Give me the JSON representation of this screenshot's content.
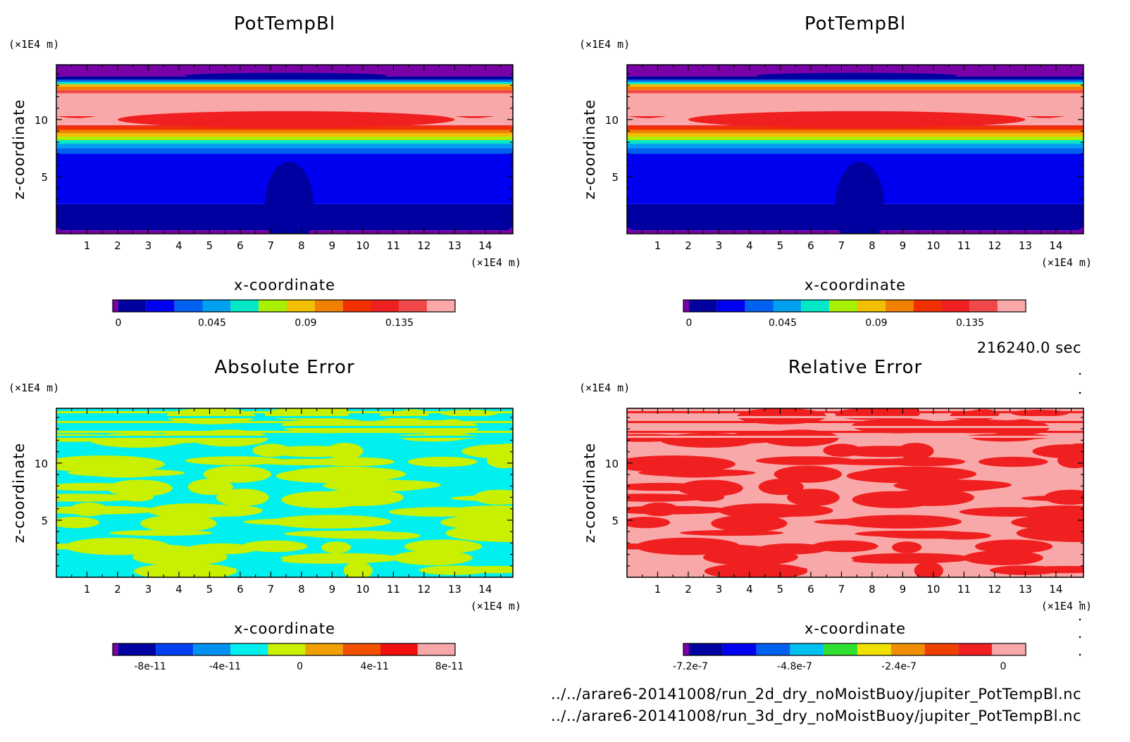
{
  "time_label": "216240.0 sec",
  "file_paths": [
    "../../arare6-20141008/run_2d_dry_noMoistBuoy/jupiter_PotTempBl.nc",
    "../../arare6-20141008/run_3d_dry_noMoistBuoy/jupiter_PotTempBl.nc"
  ],
  "chart_data": [
    {
      "type": "heatmap",
      "panel": "top-left",
      "title": "PotTempBl",
      "xlabel": "x-coordinate",
      "ylabel": "z-coordinate",
      "x_unit": "(×1E4 m)",
      "y_unit": "(×1E4 m)",
      "x_ticks": [
        1,
        2,
        3,
        4,
        5,
        6,
        7,
        8,
        9,
        10,
        11,
        12,
        13,
        14
      ],
      "y_ticks": [
        5,
        10
      ],
      "xlim": [
        0,
        14.9
      ],
      "ylim": [
        0,
        14.8
      ],
      "colorbar": {
        "colors": [
          "#7a00a8",
          "#0000a0",
          "#0000f0",
          "#0060f0",
          "#00a0f0",
          "#00e8c8",
          "#a8f000",
          "#f0c000",
          "#f08000",
          "#f03000",
          "#f02020",
          "#f04848",
          "#f8a8a8"
        ],
        "tick_labels": [
          "0",
          "0.045",
          "0.09",
          "0.135"
        ]
      },
      "bands_z_to_color": [
        [
          0,
          0.3,
          "#7a00a8"
        ],
        [
          0.3,
          2.6,
          "#0000a0"
        ],
        [
          2.6,
          7.0,
          "#0000f0"
        ],
        [
          7.0,
          7.5,
          "#0060f0"
        ],
        [
          7.5,
          7.9,
          "#00a0f0"
        ],
        [
          7.9,
          8.2,
          "#00e8c8"
        ],
        [
          8.2,
          8.5,
          "#a8f000"
        ],
        [
          8.5,
          8.8,
          "#f0c000"
        ],
        [
          8.8,
          9.1,
          "#f08000"
        ],
        [
          9.1,
          9.4,
          "#f03000"
        ],
        [
          9.4,
          10.3,
          "#f02020"
        ],
        [
          10.3,
          12.3,
          "#f8a8a8"
        ],
        [
          12.3,
          12.6,
          "#f04848"
        ],
        [
          12.6,
          12.9,
          "#f08000"
        ],
        [
          12.9,
          13.1,
          "#f0c000"
        ],
        [
          13.1,
          13.3,
          "#00e8c8"
        ],
        [
          13.3,
          13.5,
          "#0060f0"
        ],
        [
          13.5,
          13.8,
          "#0000a0"
        ],
        [
          13.8,
          14.8,
          "#7a00a8"
        ]
      ]
    },
    {
      "type": "heatmap",
      "panel": "top-right",
      "title": "PotTempBl",
      "xlabel": "x-coordinate",
      "ylabel": "z-coordinate",
      "x_unit": "(×1E4 m)",
      "y_unit": "(×1E4 m)",
      "x_ticks": [
        1,
        2,
        3,
        4,
        5,
        6,
        7,
        8,
        9,
        10,
        11,
        12,
        13,
        14
      ],
      "y_ticks": [
        5,
        10
      ],
      "xlim": [
        0,
        14.9
      ],
      "ylim": [
        0,
        14.8
      ],
      "colorbar": {
        "colors": [
          "#7a00a8",
          "#0000a0",
          "#0000f0",
          "#0060f0",
          "#00a0f0",
          "#00e8c8",
          "#a8f000",
          "#f0c000",
          "#f08000",
          "#f03000",
          "#f02020",
          "#f04848",
          "#f8a8a8"
        ],
        "tick_labels": [
          "0",
          "0.045",
          "0.09",
          "0.135"
        ]
      },
      "bands_z_to_color": [
        [
          0,
          0.3,
          "#7a00a8"
        ],
        [
          0.3,
          2.6,
          "#0000a0"
        ],
        [
          2.6,
          7.0,
          "#0000f0"
        ],
        [
          7.0,
          7.5,
          "#0060f0"
        ],
        [
          7.5,
          7.9,
          "#00a0f0"
        ],
        [
          7.9,
          8.2,
          "#00e8c8"
        ],
        [
          8.2,
          8.5,
          "#a8f000"
        ],
        [
          8.5,
          8.8,
          "#f0c000"
        ],
        [
          8.8,
          9.1,
          "#f08000"
        ],
        [
          9.1,
          9.4,
          "#f03000"
        ],
        [
          9.4,
          10.3,
          "#f02020"
        ],
        [
          10.3,
          12.3,
          "#f8a8a8"
        ],
        [
          12.3,
          12.6,
          "#f04848"
        ],
        [
          12.6,
          12.9,
          "#f08000"
        ],
        [
          12.9,
          13.1,
          "#f0c000"
        ],
        [
          13.1,
          13.3,
          "#00e8c8"
        ],
        [
          13.3,
          13.5,
          "#0060f0"
        ],
        [
          13.5,
          13.8,
          "#0000a0"
        ],
        [
          13.8,
          14.8,
          "#7a00a8"
        ]
      ]
    },
    {
      "type": "heatmap",
      "panel": "bottom-left",
      "title": "Absolute Error",
      "xlabel": "x-coordinate",
      "ylabel": "z-coordinate",
      "x_unit": "(×1E4 m)",
      "y_unit": "(×1E4 m)",
      "x_ticks": [
        1,
        2,
        3,
        4,
        5,
        6,
        7,
        8,
        9,
        10,
        11,
        12,
        13,
        14
      ],
      "y_ticks": [
        5,
        10
      ],
      "xlim": [
        0,
        14.9
      ],
      "ylim": [
        0,
        14.8
      ],
      "field_colors": [
        "#00f0f0",
        "#c8f000"
      ],
      "colorbar": {
        "colors": [
          "#7a00a8",
          "#0000a0",
          "#0040f0",
          "#0090f0",
          "#00f0f0",
          "#c8f000",
          "#f0a000",
          "#f05000",
          "#f01010",
          "#f8a8a8"
        ],
        "tick_labels": [
          "-8e-11",
          "-4e-11",
          "0",
          "4e-11",
          "8e-11"
        ]
      }
    },
    {
      "type": "heatmap",
      "panel": "bottom-right",
      "title": "Relative Error",
      "xlabel": "x-coordinate",
      "ylabel": "z-coordinate",
      "x_unit": "(×1E4 m)",
      "y_unit": "(×1E4 m)",
      "x_ticks": [
        1,
        2,
        3,
        4,
        5,
        6,
        7,
        8,
        9,
        10,
        11,
        12,
        13,
        14
      ],
      "y_ticks": [
        5,
        10
      ],
      "xlim": [
        0,
        14.9
      ],
      "ylim": [
        0,
        14.8
      ],
      "field_colors": [
        "#f8a8a8",
        "#f02020"
      ],
      "colorbar": {
        "colors": [
          "#7a00a8",
          "#0000a0",
          "#0000f0",
          "#0060f0",
          "#00c0f0",
          "#30e030",
          "#f0e000",
          "#f09000",
          "#f04000",
          "#f02020",
          "#f8a8a8"
        ],
        "tick_labels": [
          "-7.2e-7",
          "-4.8e-7",
          "-2.4e-7",
          "0"
        ]
      }
    }
  ]
}
